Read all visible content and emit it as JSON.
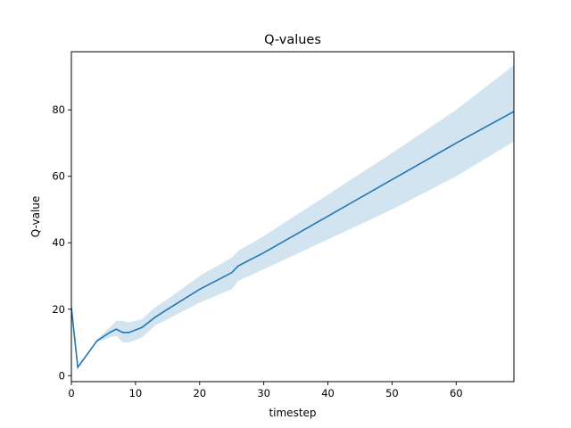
{
  "chart_data": {
    "type": "line",
    "title": "Q-values",
    "xlabel": "timestep",
    "ylabel": "Q-value",
    "xlim": [
      0,
      69
    ],
    "ylim": [
      -1.8,
      97.5
    ],
    "xticks": [
      0,
      10,
      20,
      30,
      40,
      50,
      60
    ],
    "yticks": [
      0,
      20,
      40,
      60,
      80
    ],
    "grid": false,
    "colors": {
      "line": "#1f77b4",
      "band": "#1f77b4",
      "band_opacity": 0.2
    },
    "series": [
      {
        "x": [
          0,
          1,
          4,
          6,
          7,
          8,
          9,
          11,
          13,
          15,
          20,
          25,
          26,
          30,
          40,
          50,
          60,
          69
        ],
        "y": [
          20.5,
          2.5,
          10.5,
          13,
          14,
          13,
          13,
          14.5,
          17.5,
          20,
          26,
          31,
          33,
          37,
          48,
          59,
          70,
          79.5
        ],
        "lower": [
          20.5,
          2.5,
          10,
          11.5,
          12,
          10,
          10,
          11.5,
          15,
          17,
          22,
          26,
          28.5,
          32,
          41,
          50,
          60,
          70.5
        ],
        "upper": [
          20.5,
          2.5,
          11,
          14.5,
          16.5,
          16.5,
          16,
          17,
          20.5,
          23,
          30,
          35.5,
          37.5,
          42,
          54.5,
          67,
          80,
          93.5
        ]
      }
    ]
  }
}
